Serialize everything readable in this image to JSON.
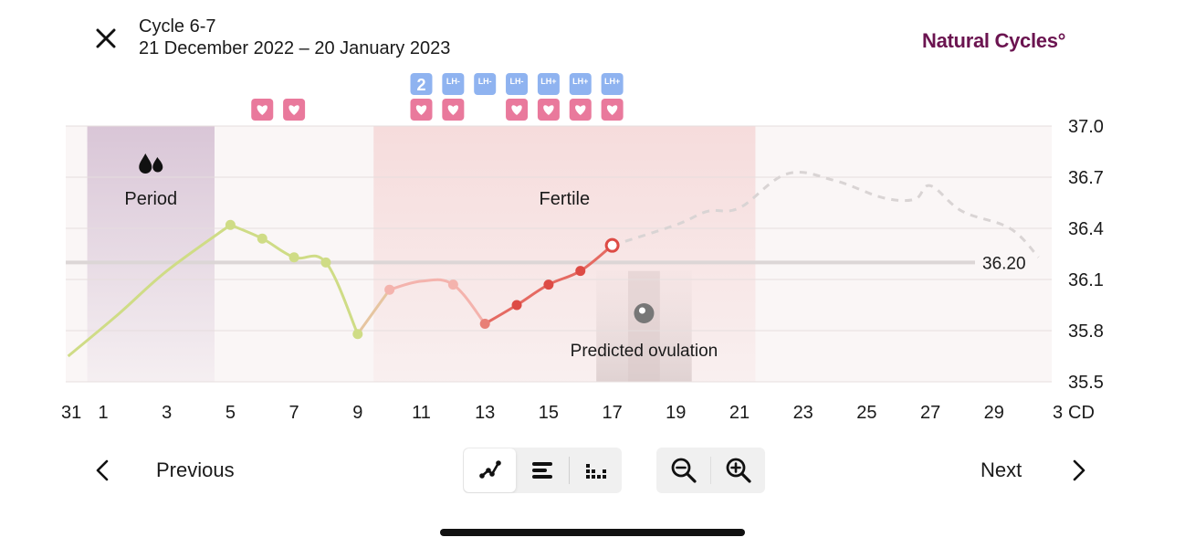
{
  "header": {
    "title": "Cycle 6-7",
    "dates": "21 December 2022 – 20 January 2023",
    "brand": "Natural Cycles°"
  },
  "colors": {
    "brand": "#6b1450",
    "period_band": "#d9c6d7",
    "fertile_band": "#f6dcdc",
    "curve_green": "#cfdc86",
    "curve_pink": "#f4b3ad",
    "curve_red": "#dd4b45",
    "badge_pink": "#e9799c",
    "badge_blue": "#8fb3f0"
  },
  "chart_data": {
    "type": "line",
    "x_axis_unit": "CD",
    "x_tick_labels": [
      "31",
      "1",
      "3",
      "5",
      "7",
      "9",
      "11",
      "13",
      "15",
      "17",
      "19",
      "21",
      "23",
      "25",
      "27",
      "29",
      "3"
    ],
    "y_tick_labels": [
      "37.0",
      "36.7",
      "36.4",
      "36.1",
      "35.8",
      "35.5"
    ],
    "ylim": [
      35.5,
      37.0
    ],
    "cover_line": {
      "value": 36.2,
      "label": "36.20"
    },
    "bands": [
      {
        "name": "period",
        "label": "Period",
        "start_cd": 0.5,
        "end_cd": 4.5
      },
      {
        "name": "fertile",
        "label": "Fertile",
        "start_cd": 9.5,
        "end_cd": 21.5
      },
      {
        "name": "predicted-ovulation",
        "label": "Predicted ovulation",
        "start_cd": 16.5,
        "end_cd": 19.5
      }
    ],
    "series": [
      {
        "phase": "green",
        "points": [
          {
            "cd": 5,
            "value": 36.42
          },
          {
            "cd": 6,
            "value": 36.34
          },
          {
            "cd": 7,
            "value": 36.23
          },
          {
            "cd": 8,
            "value": 36.2
          },
          {
            "cd": 9,
            "value": 35.78
          }
        ]
      },
      {
        "phase": "pink",
        "points": [
          {
            "cd": 10,
            "value": 36.04
          },
          {
            "cd": 12,
            "value": 36.07
          },
          {
            "cd": 13,
            "value": 35.84
          }
        ]
      },
      {
        "phase": "red",
        "points": [
          {
            "cd": 14,
            "value": 35.95
          },
          {
            "cd": 15,
            "value": 36.07
          },
          {
            "cd": 16,
            "value": 36.15
          },
          {
            "cd": 17,
            "value": 36.3
          }
        ]
      }
    ],
    "prediction": [
      {
        "cd": 17,
        "value": 36.3
      },
      {
        "cd": 19,
        "value": 36.42
      },
      {
        "cd": 20,
        "value": 36.5
      },
      {
        "cd": 21,
        "value": 36.52
      },
      {
        "cd": 22.5,
        "value": 36.72
      },
      {
        "cd": 24,
        "value": 36.68
      },
      {
        "cd": 25.5,
        "value": 36.58
      },
      {
        "cd": 26.5,
        "value": 36.57
      },
      {
        "cd": 27,
        "value": 36.65
      },
      {
        "cd": 28,
        "value": 36.5
      },
      {
        "cd": 29.5,
        "value": 36.4
      },
      {
        "cd": 30.4,
        "value": 36.23
      }
    ],
    "heart_days": [
      6,
      7,
      11,
      12,
      14,
      15,
      16,
      17
    ],
    "tests": [
      {
        "cd": 11,
        "label": "2"
      },
      {
        "cd": 12,
        "label": "LH-"
      },
      {
        "cd": 13,
        "label": "LH-"
      },
      {
        "cd": 14,
        "label": "LH-"
      },
      {
        "cd": 15,
        "label": "LH+"
      },
      {
        "cd": 16,
        "label": "LH+"
      },
      {
        "cd": 17,
        "label": "LH+"
      }
    ]
  },
  "nav": {
    "previous": "Previous",
    "next": "Next"
  }
}
